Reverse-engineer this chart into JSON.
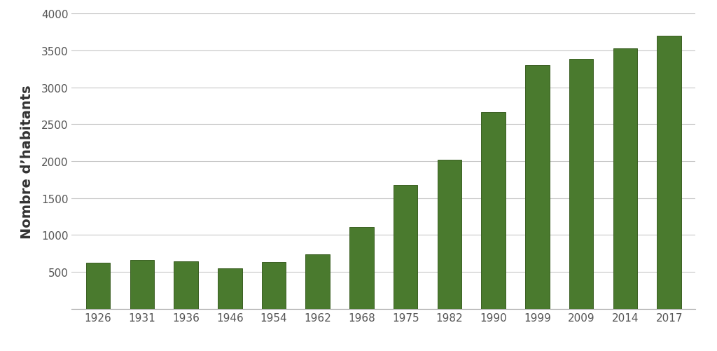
{
  "categories": [
    "1926",
    "1931",
    "1936",
    "1946",
    "1954",
    "1962",
    "1968",
    "1975",
    "1982",
    "1990",
    "1999",
    "2009",
    "2014",
    "2017"
  ],
  "values": [
    620,
    660,
    640,
    550,
    630,
    740,
    1110,
    1680,
    2020,
    2660,
    3300,
    3380,
    3530,
    3700
  ],
  "bar_color": "#4a7a2e",
  "bar_edge_color": "#3a5f22",
  "ylabel": "Nombre d’habitants",
  "ylim": [
    0,
    4000
  ],
  "yticks": [
    500,
    1000,
    1500,
    2000,
    2500,
    3000,
    3500,
    4000
  ],
  "ytick_labels": [
    "500",
    "1000",
    "1500",
    "2000",
    "2500",
    "3000",
    "3500",
    "4000"
  ],
  "background_color": "#ffffff",
  "grid_color": "#c8c8c8",
  "ylabel_fontsize": 14,
  "tick_fontsize": 11,
  "bar_width": 0.55
}
